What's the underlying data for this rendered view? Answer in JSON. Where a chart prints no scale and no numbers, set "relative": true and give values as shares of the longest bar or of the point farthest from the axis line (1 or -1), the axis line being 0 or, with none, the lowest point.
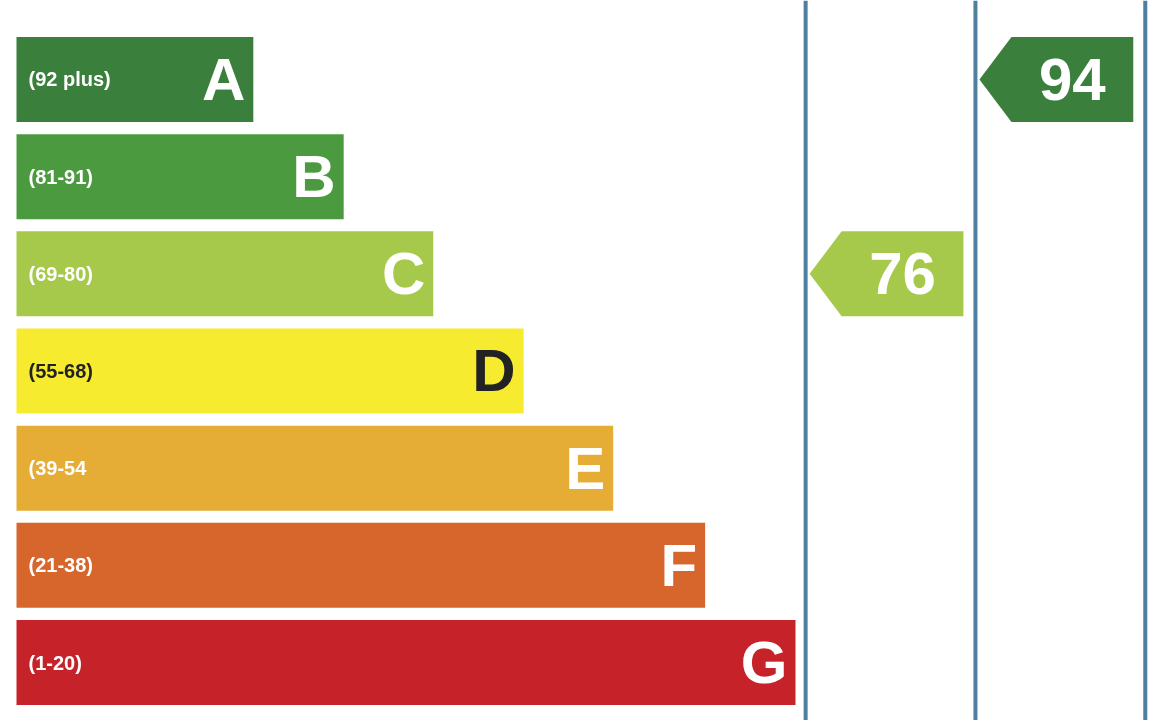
{
  "chart_data": {
    "type": "bar",
    "orientation": "horizontal",
    "relative": true,
    "grid": false,
    "categories": [
      "(92 plus)",
      "(81-91)",
      "(69-80)",
      "(55-68)",
      "(39-54",
      "(21-38)",
      "(1-20)"
    ],
    "values": [
      0.304,
      0.42,
      0.535,
      0.651,
      0.766,
      0.884,
      1
    ],
    "colors": [
      "#3b7f3d",
      "#4c9a40",
      "#a7c94b",
      "#f7eb30",
      "#e5ad36",
      "#d7662d",
      "#c5222a"
    ],
    "annotations": [
      {
        "text": "A",
        "x": 0.304,
        "y": "(92 plus)"
      },
      {
        "text": "B",
        "x": 0.42,
        "y": "(81-91)"
      },
      {
        "text": "C",
        "x": 0.535,
        "y": "(69-80)"
      },
      {
        "text": "D",
        "x": 0.651,
        "y": "(55-68)"
      },
      {
        "text": "E",
        "x": 0.766,
        "y": "(39-54"
      },
      {
        "text": "F",
        "x": 0.884,
        "y": "(21-38)"
      },
      {
        "text": "G",
        "x": 1,
        "y": "(1-20)"
      },
      "76",
      "94"
    ]
  }
}
